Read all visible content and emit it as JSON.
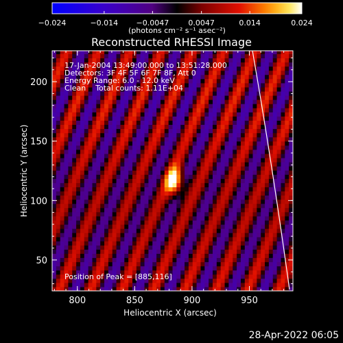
{
  "chart_data": {
    "type": "heatmap",
    "title": "Reconstructed RHESSI Image",
    "xlabel": "Heliocentric X (arcsec)",
    "ylabel": "Heliocentric Y (arcsec)",
    "xlim": [
      778,
      988
    ],
    "ylim": [
      24,
      226
    ],
    "x_ticks": [
      800,
      850,
      900,
      950
    ],
    "y_ticks": [
      50,
      100,
      150,
      200
    ],
    "colorbar": {
      "min": -0.024,
      "max": 0.024,
      "tick_values": [
        -0.024,
        -0.014,
        -0.0047,
        0.0047,
        0.014,
        0.024
      ],
      "tick_labels": [
        "−0.024",
        "−0.014",
        "−0.0047",
        "0.0047",
        "0.014",
        "0.024"
      ],
      "unit_label": "(photons cm⁻² s⁻¹ asec⁻²)"
    },
    "annotations": [
      "17-Jan-2004 13:49:00.000 to 13:51:28.000",
      "Detectors: 3F 4F 5F 6F 7F 8F, Att 0",
      "Energy Range: 6.0 - 12.0 keV",
      "Clean    Total counts: 1.11E+04"
    ],
    "peak_label": "Position of Peak = [885,116]",
    "peak": {
      "x": 885,
      "y": 116,
      "value": 0.024
    },
    "stripe_amplitude": 0.012
  },
  "footer": {
    "timestamp": "28-Apr-2022 06:05"
  }
}
